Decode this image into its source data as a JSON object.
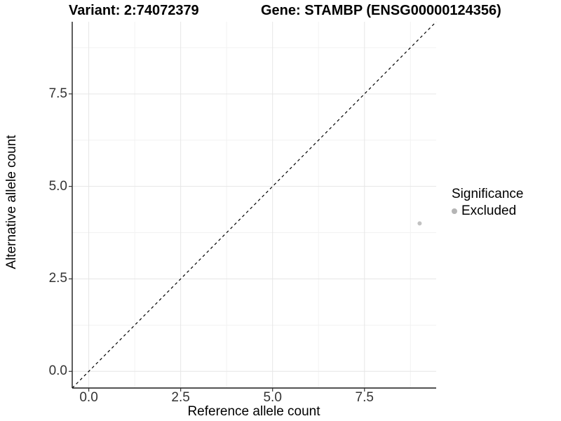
{
  "header": {
    "title_left": "Variant: 2:74072379",
    "title_right": "Gene: STAMBP (ENSG00000124356)"
  },
  "axes": {
    "x_title": "Reference allele count",
    "y_title": "Alternative allele count"
  },
  "legend": {
    "title": "Significance",
    "items": [
      {
        "label": "Excluded",
        "color": "#b5b5b5"
      }
    ]
  },
  "colors": {
    "background": "#ffffff",
    "grid_major": "#e6e6e6",
    "grid_minor": "#f2f2f2",
    "axis_line": "#1a1a1a",
    "tick_mark": "#333333",
    "tick_text": "#333333",
    "reference_line": "#000000",
    "point": "#c2c2c2"
  },
  "chart_data": {
    "type": "scatter",
    "title": "Variant: 2:74072379 | Gene: STAMBP (ENSG00000124356)",
    "xlabel": "Reference allele count",
    "ylabel": "Alternative allele count",
    "xlim": [
      -0.45,
      9.45
    ],
    "ylim": [
      -0.45,
      9.45
    ],
    "x_ticks": [
      0,
      2.5,
      5,
      7.5
    ],
    "y_ticks": [
      0,
      2.5,
      5,
      7.5
    ],
    "x_tick_labels": [
      "0.0",
      "2.5",
      "5.0",
      "7.5"
    ],
    "y_tick_labels": [
      "0.0",
      "2.5",
      "5.0",
      "7.5"
    ],
    "x_minor_ticks": [
      1.25,
      3.75,
      6.25,
      8.75
    ],
    "y_minor_ticks": [
      1.25,
      3.75,
      6.25,
      8.75
    ],
    "grid": true,
    "legend_position": "right",
    "legend_title": "Significance",
    "series": [
      {
        "name": "Excluded",
        "color": "#c2c2c2",
        "points": [
          {
            "x": 9,
            "y": 4
          }
        ]
      }
    ],
    "reference_line": {
      "style": "dashed",
      "from": [
        -0.45,
        -0.45
      ],
      "to": [
        9.45,
        9.45
      ]
    }
  }
}
